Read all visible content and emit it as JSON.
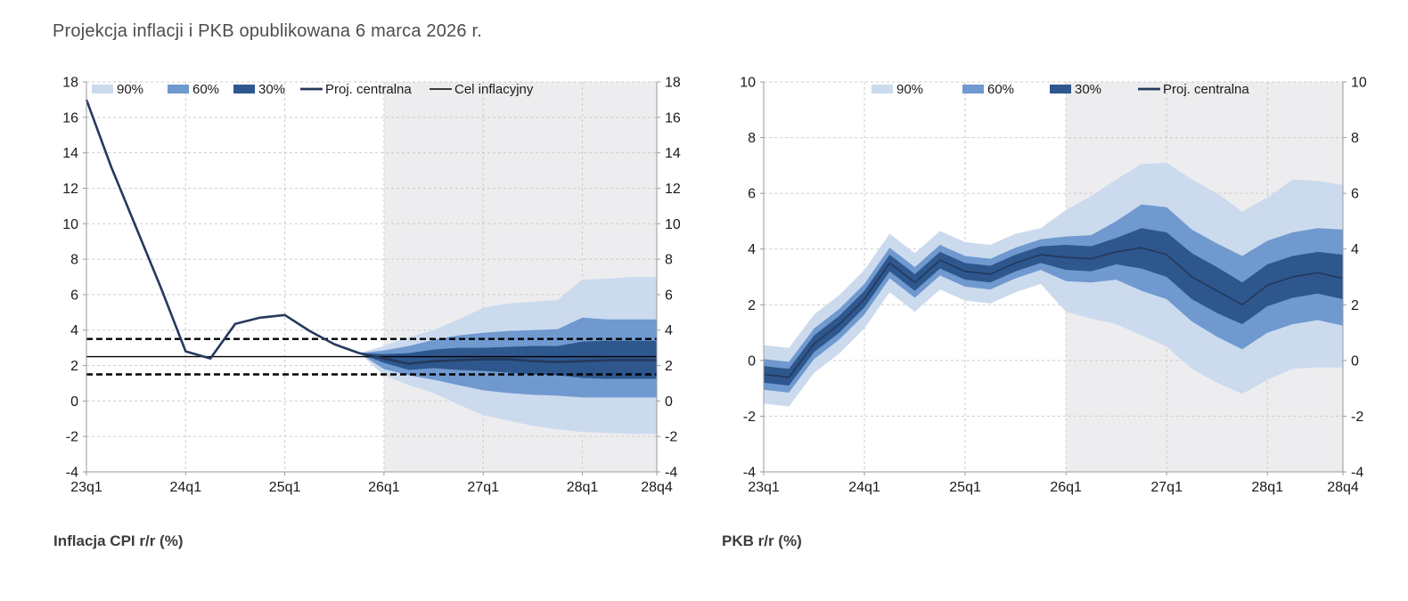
{
  "page": {
    "title": "Projekcja inflacji i PKB opublikowana 6 marca 2026 r."
  },
  "colors": {
    "band90": "#ccdaee",
    "band60": "#6f99cf",
    "band30": "#2e578e",
    "central_line": "#25395c",
    "target_line": "#000000",
    "grid": "#cbcbcb",
    "axis": "#9a9a9a",
    "projection_bg": "#ededef",
    "title_text": "#4d4d4d",
    "caption_text": "#3c3c3c"
  },
  "chart_data": [
    {
      "type": "area",
      "title": "Inflacja CPI r/r (%)",
      "x_categories": [
        "23q1",
        "23q2",
        "23q3",
        "23q4",
        "24q1",
        "24q2",
        "24q3",
        "24q4",
        "25q1",
        "25q2",
        "25q3",
        "25q4",
        "26q1",
        "26q2",
        "26q3",
        "26q4",
        "27q1",
        "27q2",
        "27q3",
        "27q4",
        "28q1",
        "28q2",
        "28q3",
        "28q4"
      ],
      "x_tick_labels": [
        "23q1",
        "24q1",
        "25q1",
        "26q1",
        "27q1",
        "28q1",
        "28q4"
      ],
      "ylim": [
        -4,
        18
      ],
      "y_step": 2,
      "grid": true,
      "legend_position": "top",
      "projection_start": "26q1",
      "central": {
        "name": "Proj. centralna",
        "values": [
          17.0,
          13.2,
          9.8,
          6.4,
          2.8,
          2.4,
          4.35,
          4.7,
          4.85,
          3.95,
          3.2,
          2.7,
          2.4,
          2.1,
          2.25,
          2.3,
          2.35,
          2.35,
          2.25,
          2.2,
          2.25,
          2.3,
          2.3,
          2.3
        ]
      },
      "bands": [
        {
          "name": "90%",
          "upper": [
            null,
            null,
            null,
            null,
            null,
            null,
            null,
            null,
            null,
            null,
            null,
            2.7,
            3.1,
            3.6,
            4.0,
            4.6,
            5.25,
            5.5,
            5.6,
            5.7,
            6.85,
            6.9,
            7.0,
            7.0
          ],
          "lower": [
            null,
            null,
            null,
            null,
            null,
            null,
            null,
            null,
            null,
            null,
            null,
            2.7,
            1.45,
            0.9,
            0.45,
            -0.2,
            -0.8,
            -1.1,
            -1.4,
            -1.6,
            -1.75,
            -1.8,
            -1.85,
            -1.85
          ]
        },
        {
          "name": "60%",
          "upper": [
            null,
            null,
            null,
            null,
            null,
            null,
            null,
            null,
            null,
            null,
            null,
            2.7,
            2.85,
            3.1,
            3.45,
            3.7,
            3.85,
            3.95,
            4.0,
            4.05,
            4.7,
            4.6,
            4.6,
            4.6
          ],
          "lower": [
            null,
            null,
            null,
            null,
            null,
            null,
            null,
            null,
            null,
            null,
            null,
            2.7,
            1.8,
            1.45,
            1.2,
            0.9,
            0.6,
            0.45,
            0.35,
            0.3,
            0.2,
            0.2,
            0.2,
            0.2
          ]
        },
        {
          "name": "30%",
          "upper": [
            null,
            null,
            null,
            null,
            null,
            null,
            null,
            null,
            null,
            null,
            null,
            2.7,
            2.65,
            2.7,
            2.9,
            3.0,
            3.0,
            3.05,
            3.1,
            3.1,
            3.35,
            3.4,
            3.4,
            3.4
          ],
          "lower": [
            null,
            null,
            null,
            null,
            null,
            null,
            null,
            null,
            null,
            null,
            null,
            2.7,
            2.15,
            1.75,
            1.85,
            1.75,
            1.7,
            1.6,
            1.5,
            1.45,
            1.3,
            1.25,
            1.25,
            1.25
          ]
        }
      ],
      "target_lines": {
        "name": "Cel inflacyjny",
        "center": 2.5,
        "upper": 3.5,
        "lower": 1.5
      },
      "legend_items": [
        {
          "kind": "band",
          "label": "90%"
        },
        {
          "kind": "band",
          "label": "60%"
        },
        {
          "kind": "band",
          "label": "30%"
        },
        {
          "kind": "central",
          "label": "Proj. centralna"
        },
        {
          "kind": "target",
          "label": "Cel inflacyjny"
        }
      ]
    },
    {
      "type": "area",
      "title": "PKB r/r (%)",
      "x_categories": [
        "23q1",
        "23q2",
        "23q3",
        "23q4",
        "24q1",
        "24q2",
        "24q3",
        "24q4",
        "25q1",
        "25q2",
        "25q3",
        "25q4",
        "26q1",
        "26q2",
        "26q3",
        "26q4",
        "27q1",
        "27q2",
        "27q3",
        "27q4",
        "28q1",
        "28q2",
        "28q3",
        "28q4"
      ],
      "x_tick_labels": [
        "23q1",
        "24q1",
        "25q1",
        "26q1",
        "27q1",
        "28q1",
        "28q4"
      ],
      "ylim": [
        -4,
        10
      ],
      "y_step": 2,
      "grid": true,
      "legend_position": "top",
      "projection_start": "26q1",
      "central": {
        "name": "Proj. centralna",
        "values": [
          -0.5,
          -0.6,
          0.6,
          1.3,
          2.2,
          3.5,
          2.8,
          3.6,
          3.2,
          3.1,
          3.5,
          3.8,
          3.7,
          3.65,
          3.9,
          4.05,
          3.8,
          3.0,
          2.5,
          2.0,
          2.7,
          3.0,
          3.15,
          2.95
        ]
      },
      "bands": [
        {
          "name": "90%",
          "upper": [
            0.55,
            0.45,
            1.65,
            2.35,
            3.25,
            4.55,
            3.85,
            4.65,
            4.25,
            4.15,
            4.55,
            4.75,
            5.4,
            5.9,
            6.5,
            7.05,
            7.1,
            6.5,
            6.0,
            5.35,
            5.85,
            6.5,
            6.45,
            6.3
          ],
          "lower": [
            -1.55,
            -1.65,
            -0.45,
            0.25,
            1.15,
            2.45,
            1.75,
            2.55,
            2.15,
            2.05,
            2.45,
            2.75,
            1.75,
            1.5,
            1.3,
            0.9,
            0.5,
            -0.3,
            -0.8,
            -1.2,
            -0.7,
            -0.3,
            -0.25,
            -0.25
          ]
        },
        {
          "name": "60%",
          "upper": [
            0.05,
            -0.05,
            1.15,
            1.85,
            2.75,
            4.05,
            3.35,
            4.15,
            3.75,
            3.65,
            4.05,
            4.35,
            4.45,
            4.5,
            5.0,
            5.6,
            5.5,
            4.7,
            4.2,
            3.75,
            4.3,
            4.6,
            4.75,
            4.7
          ],
          "lower": [
            -1.05,
            -1.15,
            0.05,
            0.75,
            1.65,
            2.95,
            2.25,
            3.05,
            2.65,
            2.55,
            2.95,
            3.25,
            2.85,
            2.8,
            2.9,
            2.5,
            2.2,
            1.4,
            0.85,
            0.4,
            1.0,
            1.3,
            1.45,
            1.25
          ]
        },
        {
          "name": "30%",
          "upper": [
            -0.2,
            -0.3,
            0.9,
            1.6,
            2.5,
            3.8,
            3.1,
            3.9,
            3.5,
            3.4,
            3.8,
            4.1,
            4.15,
            4.1,
            4.4,
            4.75,
            4.6,
            3.85,
            3.35,
            2.8,
            3.45,
            3.75,
            3.9,
            3.8
          ],
          "lower": [
            -0.8,
            -0.9,
            0.3,
            1.0,
            1.9,
            3.2,
            2.5,
            3.3,
            2.9,
            2.8,
            3.2,
            3.5,
            3.25,
            3.2,
            3.45,
            3.3,
            3.0,
            2.2,
            1.7,
            1.3,
            1.95,
            2.25,
            2.4,
            2.2
          ]
        }
      ],
      "target_lines": null,
      "legend_items": [
        {
          "kind": "band",
          "label": "90%"
        },
        {
          "kind": "band",
          "label": "60%"
        },
        {
          "kind": "band",
          "label": "30%"
        },
        {
          "kind": "central",
          "label": "Proj. centralna"
        }
      ]
    }
  ]
}
